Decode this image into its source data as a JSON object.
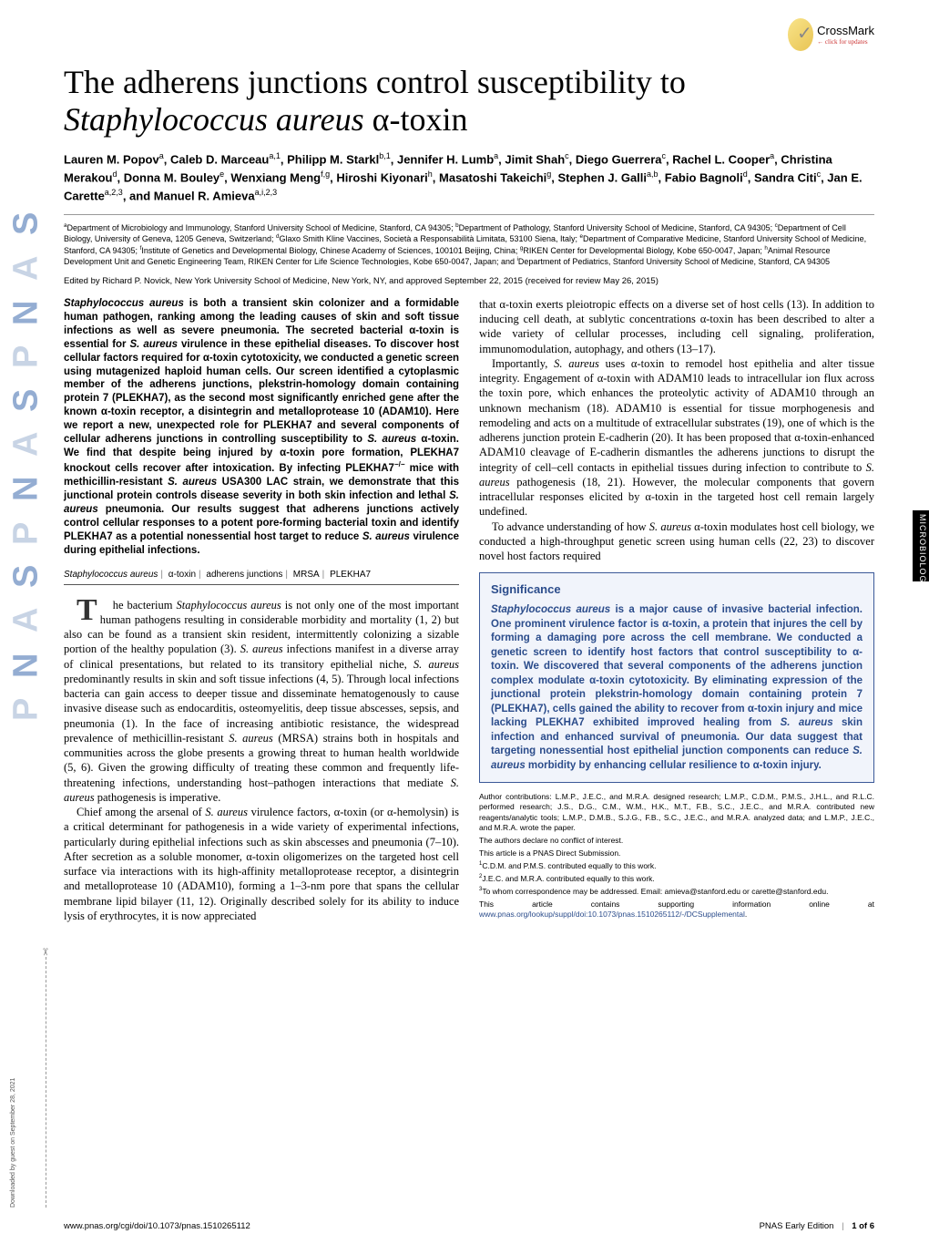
{
  "crossmark": {
    "label": "CrossMark",
    "sub": "← click for updates"
  },
  "sidetab": "MICROBIOLOGY",
  "pnas_banner": [
    "P",
    "N",
    "A",
    "S",
    " ",
    "P",
    "N",
    "A",
    "S",
    " ",
    "P",
    "N",
    "A",
    "S"
  ],
  "title_pre": "The adherens junctions control susceptibility to ",
  "title_ital": "Staphylococcus aureus",
  "title_post": " α-toxin",
  "authors": "Lauren M. Popov<sup>a</sup>, Caleb D. Marceau<sup>a,1</sup>, Philipp M. Starkl<sup>b,1</sup>, Jennifer H. Lumb<sup>a</sup>, Jimit Shah<sup>c</sup>, Diego Guerrera<sup>c</sup>, Rachel L. Cooper<sup>a</sup>, Christina Merakou<sup>d</sup>, Donna M. Bouley<sup>e</sup>, Wenxiang Meng<sup>f,g</sup>, Hiroshi Kiyonari<sup>h</sup>, Masatoshi Takeichi<sup>g</sup>, Stephen J. Galli<sup>a,b</sup>, Fabio Bagnoli<sup>d</sup>, Sandra Citi<sup>c</sup>, Jan E. Carette<sup>a,2,3</sup>, and Manuel R. Amieva<sup>a,i,2,3</sup>",
  "affiliations": "<sup>a</sup>Department of Microbiology and Immunology, Stanford University School of Medicine, Stanford, CA 94305; <sup>b</sup>Department of Pathology, Stanford University School of Medicine, Stanford, CA 94305; <sup>c</sup>Department of Cell Biology, University of Geneva, 1205 Geneva, Switzerland; <sup>d</sup>Glaxo Smith Kline Vaccines, Società a Responsabilità Limitata, 53100 Siena, Italy; <sup>e</sup>Department of Comparative Medicine, Stanford University School of Medicine, Stanford, CA 94305; <sup>f</sup>Institute of Genetics and Developmental Biology, Chinese Academy of Sciences, 100101 Beijing, China; <sup>g</sup>RIKEN Center for Developmental Biology, Kobe 650-0047, Japan; <sup>h</sup>Animal Resource Development Unit and Genetic Engineering Team, RIKEN Center for Life Science Technologies, Kobe 650-0047, Japan; and <sup>i</sup>Department of Pediatrics, Stanford University School of Medicine, Stanford, CA 94305",
  "edited": "Edited by Richard P. Novick, New York University School of Medicine, New York, NY, and approved September 22, 2015 (received for review May 26, 2015)",
  "abstract": "<span class='ital'>Staphylococcus aureus</span> is both a transient skin colonizer and a formidable human pathogen, ranking among the leading causes of skin and soft tissue infections as well as severe pneumonia. The secreted bacterial α-toxin is essential for <span class='ital'>S. aureus</span> virulence in these epithelial diseases. To discover host cellular factors required for α-toxin cytotoxicity, we conducted a genetic screen using mutagenized haploid human cells. Our screen identified a cytoplasmic member of the adherens junctions, plekstrin-homology domain containing protein 7 (PLEKHA7), as the second most significantly enriched gene after the known α-toxin receptor, a disintegrin and metalloprotease 10 (ADAM10). Here we report a new, unexpected role for PLEKHA7 and several components of cellular adherens junctions in controlling susceptibility to <span class='ital'>S. aureus</span> α-toxin. We find that despite being injured by α-toxin pore formation, PLEKHA7 knockout cells recover after intoxication. By infecting PLEKHA7<sup>−/−</sup> mice with methicillin-resistant <span class='ital'>S. aureus</span> USA300 LAC strain, we demonstrate that this junctional protein controls disease severity in both skin infection and lethal <span class='ital'>S. aureus</span> pneumonia. Our results suggest that adherens junctions actively control cellular responses to a potent pore-forming bacterial toxin and identify PLEKHA7 as a potential nonessential host target to reduce <span class='ital'>S. aureus</span> virulence during epithelial infections.",
  "keywords": [
    "Staphylococcus aureus",
    "α-toxin",
    "adherens junctions",
    "MRSA",
    "PLEKHA7"
  ],
  "body_col1_p1": "he bacterium <span class='ital'>Staphylococcus aureus</span> is not only one of the most important human pathogens resulting in considerable morbidity and mortality (1, 2) but also can be found as a transient skin resident, intermittently colonizing a sizable portion of the healthy population (3). <span class='ital'>S. aureus</span> infections manifest in a diverse array of clinical presentations, but related to its transitory epithelial niche, <span class='ital'>S. aureus</span> predominantly results in skin and soft tissue infections (4, 5). Through local infections bacteria can gain access to deeper tissue and disseminate hematogenously to cause invasive disease such as endocarditis, osteomyelitis, deep tissue abscesses, sepsis, and pneumonia (1). In the face of increasing antibiotic resistance, the widespread prevalence of methicillin-resistant <span class='ital'>S. aureus</span> (MRSA) strains both in hospitals and communities across the globe presents a growing threat to human health worldwide (5, 6). Given the growing difficulty of treating these common and frequently life-threatening infections, understanding host–pathogen interactions that mediate <span class='ital'>S. aureus</span> pathogenesis is imperative.",
  "body_col1_p2": "Chief among the arsenal of <span class='ital'>S. aureus</span> virulence factors, α-toxin (or α-hemolysin) is a critical determinant for pathogenesis in a wide variety of experimental infections, particularly during epithelial infections such as skin abscesses and pneumonia (7–10). After secretion as a soluble monomer, α-toxin oligomerizes on the targeted host cell surface via interactions with its high-affinity metalloprotease receptor, a disintegrin and metalloprotease 10 (ADAM10), forming a 1–3-nm pore that spans the cellular membrane lipid bilayer (11, 12). Originally described solely for its ability to induce lysis of erythrocytes, it is now appreciated",
  "body_col2_p1": "that α-toxin exerts pleiotropic effects on a diverse set of host cells (13). In addition to inducing cell death, at sublytic concentrations α-toxin has been described to alter a wide variety of cellular processes, including cell signaling, proliferation, immunomodulation, autophagy, and others (13–17).",
  "body_col2_p2": "Importantly, <span class='ital'>S. aureus</span> uses α-toxin to remodel host epithelia and alter tissue integrity. Engagement of α-toxin with ADAM10 leads to intracellular ion flux across the toxin pore, which enhances the proteolytic activity of ADAM10 through an unknown mechanism (18). ADAM10 is essential for tissue morphogenesis and remodeling and acts on a multitude of extracellular substrates (19), one of which is the adherens junction protein E-cadherin (20). It has been proposed that α-toxin-enhanced ADAM10 cleavage of E-cadherin dismantles the adherens junctions to disrupt the integrity of cell–cell contacts in epithelial tissues during infection to contribute to <span class='ital'>S. aureus</span> pathogenesis (18, 21). However, the molecular components that govern intracellular responses elicited by α-toxin in the targeted host cell remain largely undefined.",
  "body_col2_p3": "To advance understanding of how <span class='ital'>S. aureus</span> α-toxin modulates host cell biology, we conducted a high-throughput genetic screen using human cells (22, 23) to discover novel host factors required",
  "significance": {
    "heading": "Significance",
    "text": "<span class='ital'>Staphylococcus aureus</span> is a major cause of invasive bacterial infection. One prominent virulence factor is α-toxin, a protein that injures the cell by forming a damaging pore across the cell membrane. We conducted a genetic screen to identify host factors that control susceptibility to α-toxin. We discovered that several components of the adherens junction complex modulate α-toxin cytotoxicity. By eliminating expression of the junctional protein plekstrin-homology domain containing protein 7 (PLEKHA7), cells gained the ability to recover from α-toxin injury and mice lacking PLEKHA7 exhibited improved healing from <span class='ital'>S. aureus</span> skin infection and enhanced survival of pneumonia. Our data suggest that targeting nonessential host epithelial junction components can reduce <span class='ital'>S. aureus</span> morbidity by enhancing cellular resilience to α-toxin injury."
  },
  "footnotes": [
    "Author contributions: L.M.P., J.E.C., and M.R.A. designed research; L.M.P., C.D.M., P.M.S., J.H.L., and R.L.C. performed research; J.S., D.G., C.M., W.M., H.K., M.T., F.B., S.C., J.E.C., and M.R.A. contributed new reagents/analytic tools; L.M.P., D.M.B., S.J.G., F.B., S.C., J.E.C., and M.R.A. analyzed data; and L.M.P., J.E.C., and M.R.A. wrote the paper.",
    "The authors declare no conflict of interest.",
    "This article is a PNAS Direct Submission.",
    "<sup>1</sup>C.D.M. and P.M.S. contributed equally to this work.",
    "<sup>2</sup>J.E.C. and M.R.A. contributed equally to this work.",
    "<sup>3</sup>To whom correspondence may be addressed. Email: amieva@stanford.edu or carette@stanford.edu.",
    "This article contains supporting information online at <a>www.pnas.org/lookup/suppl/doi:10.1073/pnas.1510265112/-/DCSupplemental</a>."
  ],
  "download_note": "Downloaded by guest on September 28, 2021",
  "footer": {
    "left": "www.pnas.org/cgi/doi/10.1073/pnas.1510265112",
    "right_pre": "PNAS Early Edition",
    "right_page": "1 of 6"
  }
}
